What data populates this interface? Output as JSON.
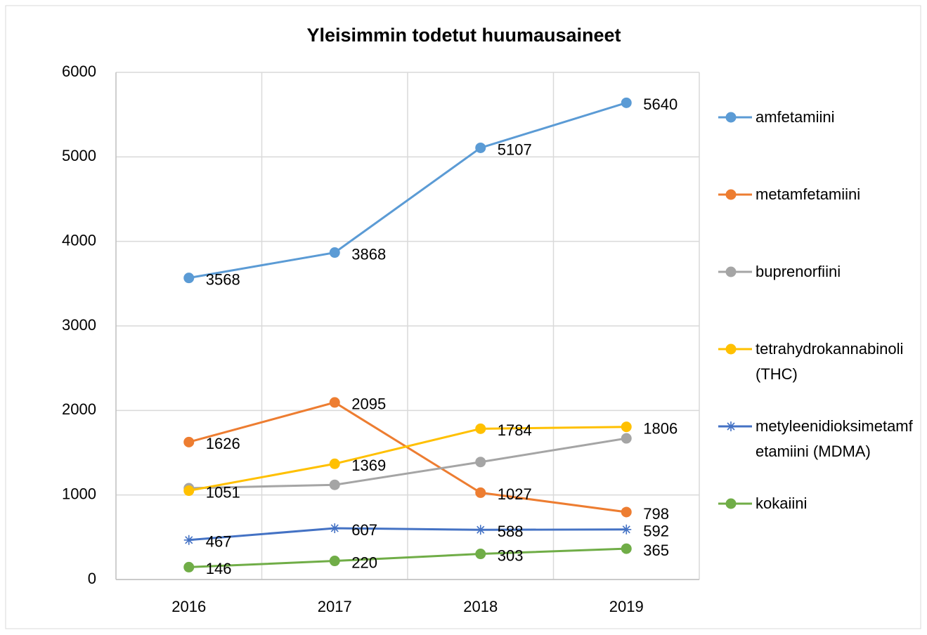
{
  "chart_data": {
    "type": "line",
    "title": "Yleisimmin todetut huumausaineet",
    "categories": [
      "2016",
      "2017",
      "2018",
      "2019"
    ],
    "series": [
      {
        "name": "amfetamiini",
        "color": "#5b9bd5",
        "marker": "circle",
        "data_labels": true,
        "values": [
          3568,
          3868,
          5107,
          5640
        ]
      },
      {
        "name": "metamfetamiini",
        "color": "#ed7d31",
        "marker": "circle",
        "data_labels": true,
        "values": [
          1626,
          2095,
          1027,
          798
        ]
      },
      {
        "name": "buprenorfiini",
        "color": "#a5a5a5",
        "marker": "circle",
        "data_labels": false,
        "values": [
          1080,
          1120,
          1390,
          1670
        ]
      },
      {
        "name": "tetrahydrokannabinoli (THC)",
        "color": "#ffc000",
        "marker": "circle",
        "data_labels": true,
        "values": [
          1051,
          1369,
          1784,
          1806
        ]
      },
      {
        "name": "metyleenidioksimetamfetamiini (MDMA)",
        "color": "#4472c4",
        "marker": "star",
        "data_labels": true,
        "values": [
          467,
          607,
          588,
          592
        ]
      },
      {
        "name": "kokaiini",
        "color": "#70ad47",
        "marker": "circle",
        "data_labels": true,
        "values": [
          146,
          220,
          303,
          365
        ]
      }
    ],
    "ylim": [
      0,
      6000
    ],
    "yticks": [
      0,
      1000,
      2000,
      3000,
      4000,
      5000,
      6000
    ],
    "grid": true,
    "legend": "right"
  }
}
